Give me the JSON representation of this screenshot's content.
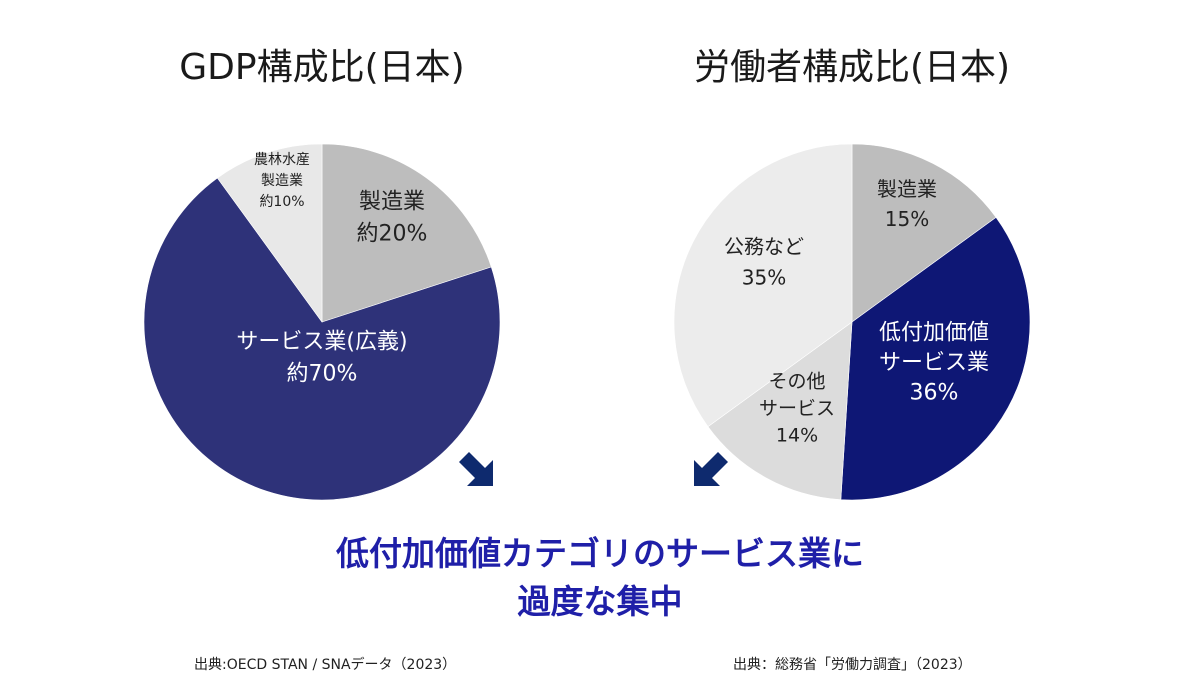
{
  "colors": {
    "navy": "#2e3279",
    "deep_navy": "#0e1775",
    "gray": "#bdbdbd",
    "light_gray": "#e8e8e8",
    "lighter_gray": "#dcdcdc",
    "arrow": "#0e2a6e",
    "headline": "#1f1fa8"
  },
  "headline": {
    "line1": "低付加価値カテゴリのサービス業に",
    "line2": "過度な集中"
  },
  "sources": {
    "left": "出典:OECD STAN / SNAデータ（2023）",
    "right": "出典：総務省「労働力調査」（2023）"
  },
  "icons": {
    "left_arrow": "arrow-down-right-icon",
    "right_arrow": "arrow-down-left-icon"
  },
  "chart_data": [
    {
      "type": "pie",
      "title": "GDP構成比(日本)",
      "slices": [
        {
          "label_lines": [
            "製造業",
            "約20%"
          ],
          "value": 20,
          "color": "#bdbdbd",
          "text_color": "#222222"
        },
        {
          "label_lines": [
            "サービス業(広義)",
            "約70%"
          ],
          "value": 70,
          "color": "#2e3279",
          "text_color": "#ffffff"
        },
        {
          "label_lines": [
            "農林水産",
            "製造業",
            "約10%"
          ],
          "value": 10,
          "color": "#e8e8e8",
          "text_color": "#222222"
        }
      ]
    },
    {
      "type": "pie",
      "title": "労働者構成比(日本)",
      "slices": [
        {
          "label_lines": [
            "製造業",
            "15%"
          ],
          "value": 15,
          "color": "#bdbdbd",
          "text_color": "#222222"
        },
        {
          "label_lines": [
            "低付加価値",
            "サービス業",
            "36%"
          ],
          "value": 36,
          "color": "#0e1775",
          "text_color": "#ffffff"
        },
        {
          "label_lines": [
            "その他",
            "サービス",
            "14%"
          ],
          "value": 14,
          "color": "#dcdcdc",
          "text_color": "#222222"
        },
        {
          "label_lines": [
            "公務など",
            "35%"
          ],
          "value": 35,
          "color": "#ececec",
          "text_color": "#222222"
        }
      ]
    }
  ]
}
